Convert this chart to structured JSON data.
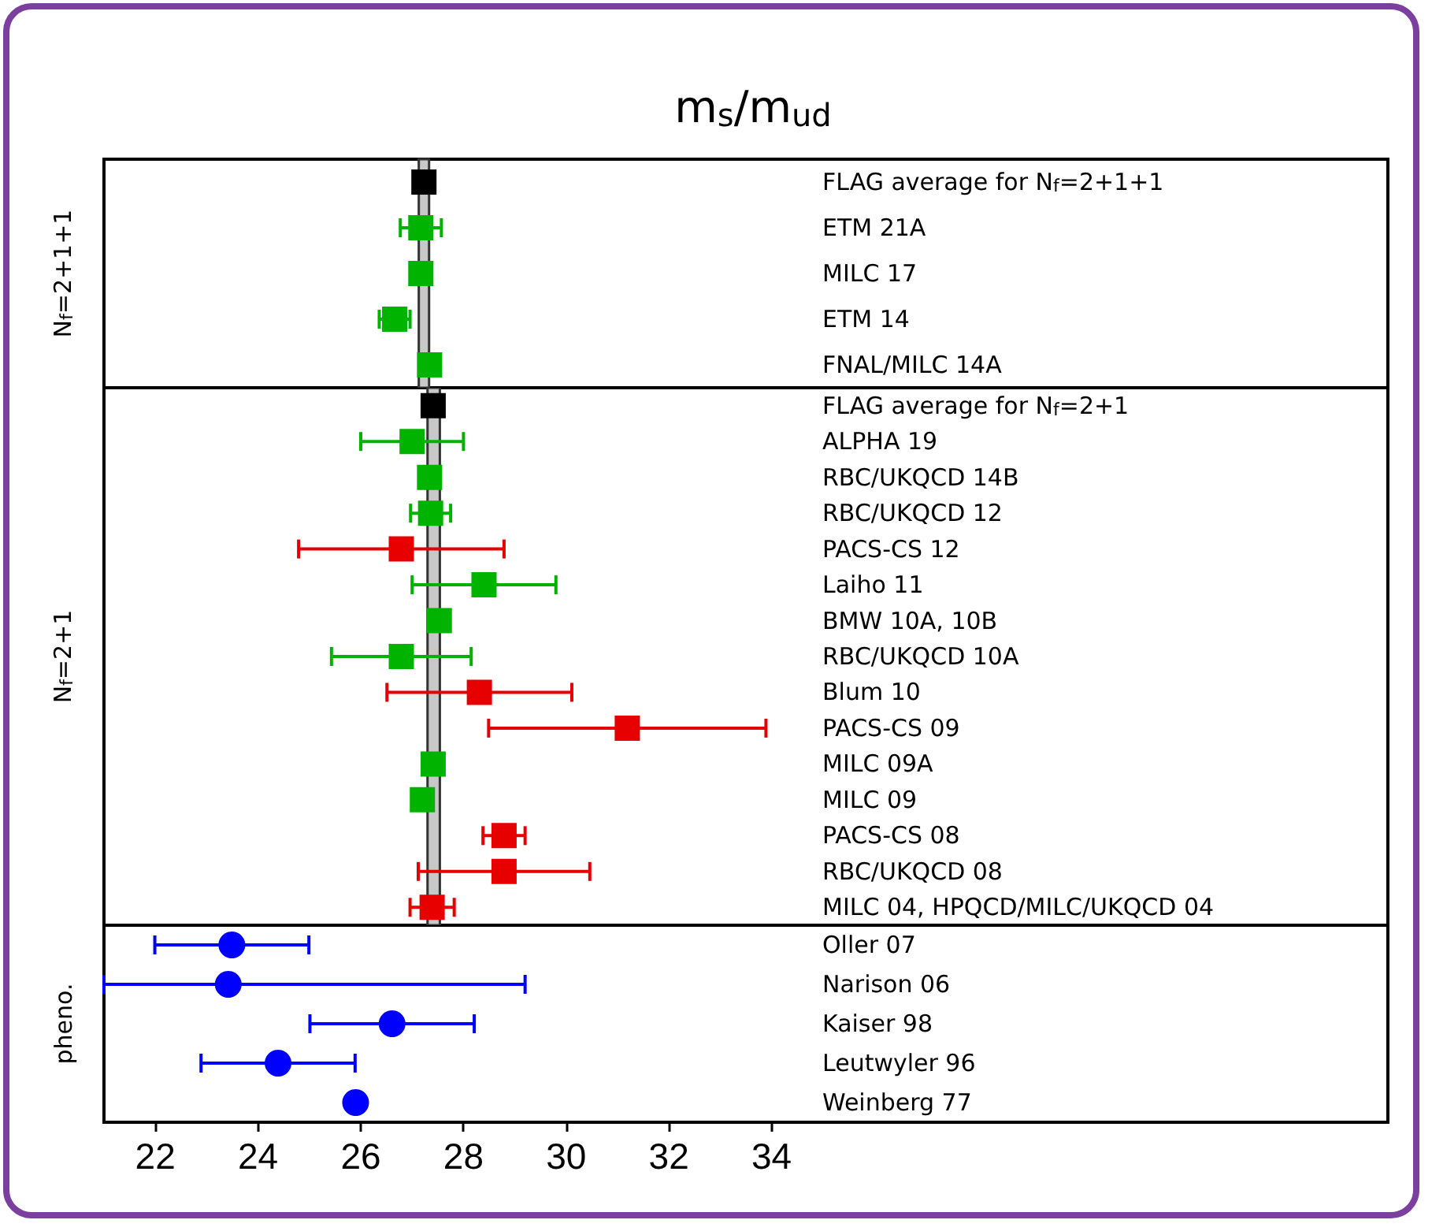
{
  "chart_data": [
    {
      "type": "scatter",
      "orientation": "horizontal",
      "title": "m$_{s}$/m$_{ud}$",
      "ylabel": "N$_{f}$=2+1+1",
      "categories": [
        "FLAG average for N$_{f}$=2+1+1",
        "ETM 21A",
        "MILC 17",
        "ETM 14",
        "FNAL/MILC 14A"
      ],
      "series": [
        {
          "color": "#000000",
          "marker": "square",
          "values": [
            27.23,
            null,
            null,
            null,
            null
          ],
          "errors": [
            null,
            null,
            null,
            null,
            null
          ]
        },
        {
          "color": "#00b300",
          "marker": "square",
          "values": [
            null,
            27.17,
            27.17,
            26.66,
            27.34
          ],
          "errors": [
            null,
            0.4,
            null,
            0.3,
            null
          ]
        }
      ],
      "bands": [
        {
          "axis": "x",
          "from": 27.13,
          "to": 27.33,
          "color": "#c8c8c8"
        }
      ],
      "xlim": [
        21,
        46
      ],
      "xticks": [
        22,
        24,
        26,
        28,
        30,
        32,
        34
      ],
      "tick_labels": "y"
    },
    {
      "type": "scatter",
      "orientation": "horizontal",
      "ylabel": "N$_{f}$=2+1",
      "categories": [
        "FLAG average for N$_{f}$=2+1",
        "ALPHA 19",
        "RBC/UKQCD 14B",
        "RBC/UKQCD 12",
        "PACS-CS 12",
        "Laiho 11",
        "BMW 10A, 10B",
        "RBC/UKQCD 10A",
        "Blum 10",
        "PACS-CS 09",
        "MILC 09A",
        "MILC 09",
        "PACS-CS 08",
        "RBC/UKQCD 08",
        "MILC 04, HPQCD/MILC/UKQCD 04"
      ],
      "series": [
        {
          "color": "#000000",
          "marker": "square",
          "values": [
            27.41,
            null,
            null,
            null,
            null,
            null,
            null,
            null,
            null,
            null,
            null,
            null,
            null,
            null,
            null
          ],
          "errors": [
            null,
            null,
            null,
            null,
            null,
            null,
            null,
            null,
            null,
            null,
            null,
            null,
            null,
            null,
            null
          ]
        },
        {
          "color": "#00b300",
          "marker": "square",
          "values": [
            null,
            27.0,
            27.34,
            27.36,
            null,
            28.4,
            27.53,
            26.79,
            null,
            null,
            27.41,
            27.2,
            null,
            null,
            null
          ],
          "errors": [
            null,
            1.0,
            null,
            0.39,
            null,
            1.4,
            null,
            1.36,
            null,
            null,
            null,
            null,
            null,
            null,
            null
          ]
        },
        {
          "color": "#e60000",
          "marker": "square",
          "values": [
            null,
            null,
            null,
            null,
            26.79,
            null,
            null,
            null,
            28.31,
            31.19,
            null,
            null,
            28.79,
            28.79,
            27.39
          ],
          "errors": [
            null,
            null,
            null,
            null,
            2.0,
            null,
            null,
            null,
            1.8,
            2.7,
            null,
            null,
            0.41,
            1.67,
            0.43
          ]
        }
      ],
      "bands": [
        {
          "axis": "x",
          "from": 27.3,
          "to": 27.54,
          "color": "#c8c8c8"
        }
      ],
      "xlim": [
        21,
        46
      ],
      "xticks": [
        22,
        24,
        26,
        28,
        30,
        32,
        34
      ],
      "tick_labels": "y"
    },
    {
      "type": "scatter",
      "orientation": "horizontal",
      "ylabel": "pheno.",
      "categories": [
        "Oller 07",
        "Narison 06",
        "Kaiser 98",
        "Leutwyler 96",
        "Weinberg 77"
      ],
      "series": [
        {
          "color": "#0000ff",
          "marker": "circle",
          "values": [
            23.49,
            23.42,
            26.61,
            24.39,
            25.9
          ],
          "errors": [
            1.5,
            [
              21.0,
              29.2
            ],
            1.6,
            1.5,
            null
          ]
        }
      ],
      "xlim": [
        21,
        46
      ],
      "xticks": [
        22,
        24,
        26,
        28,
        30,
        32,
        34
      ]
    }
  ]
}
